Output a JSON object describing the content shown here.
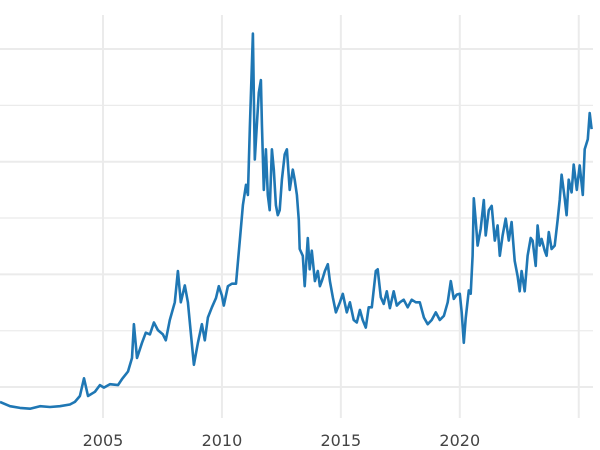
{
  "chart_data": {
    "type": "line",
    "title": "",
    "xlabel": "",
    "ylabel": "",
    "xlim": [
      2000.67,
      2025.6
    ],
    "ylim": [
      3.0,
      50.7
    ],
    "x_ticks": [
      2005,
      2010,
      2015,
      2020,
      2025
    ],
    "x_tick_labels": [
      "2005",
      "2010",
      "2015",
      "2020",
      ""
    ],
    "y_gridlines": [
      6.67,
      13.33,
      20,
      26.67,
      33.33,
      40,
      46.67
    ],
    "grid": true,
    "legend": "none",
    "line_color": "#1f77b4",
    "grid_color": "#ebebeb",
    "series": [
      {
        "points": [
          [
            2000.67,
            4.9
          ],
          [
            2001.09,
            4.4
          ],
          [
            2001.51,
            4.2
          ],
          [
            2001.93,
            4.1
          ],
          [
            2002.35,
            4.4
          ],
          [
            2002.77,
            4.3
          ],
          [
            2003.19,
            4.4
          ],
          [
            2003.61,
            4.6
          ],
          [
            2003.82,
            4.9
          ],
          [
            2004.03,
            5.6
          ],
          [
            2004.2,
            7.7
          ],
          [
            2004.37,
            5.6
          ],
          [
            2004.66,
            6.1
          ],
          [
            2004.87,
            6.9
          ],
          [
            2005.04,
            6.6
          ],
          [
            2005.29,
            7.0
          ],
          [
            2005.63,
            6.9
          ],
          [
            2005.8,
            7.6
          ],
          [
            2006.05,
            8.5
          ],
          [
            2006.22,
            10.1
          ],
          [
            2006.3,
            14.1
          ],
          [
            2006.43,
            10.1
          ],
          [
            2006.64,
            11.9
          ],
          [
            2006.8,
            13.1
          ],
          [
            2006.97,
            12.9
          ],
          [
            2007.14,
            14.3
          ],
          [
            2007.31,
            13.4
          ],
          [
            2007.52,
            12.9
          ],
          [
            2007.64,
            12.2
          ],
          [
            2007.81,
            14.6
          ],
          [
            2008.02,
            16.7
          ],
          [
            2008.15,
            20.4
          ],
          [
            2008.27,
            16.7
          ],
          [
            2008.44,
            18.7
          ],
          [
            2008.57,
            16.7
          ],
          [
            2008.69,
            13.1
          ],
          [
            2008.82,
            9.3
          ],
          [
            2008.99,
            11.9
          ],
          [
            2009.16,
            14.1
          ],
          [
            2009.28,
            12.2
          ],
          [
            2009.41,
            14.9
          ],
          [
            2009.58,
            16.1
          ],
          [
            2009.75,
            17.2
          ],
          [
            2009.87,
            18.6
          ],
          [
            2010.0,
            17.5
          ],
          [
            2010.08,
            16.3
          ],
          [
            2010.25,
            18.6
          ],
          [
            2010.42,
            18.9
          ],
          [
            2010.59,
            18.9
          ],
          [
            2010.75,
            24.0
          ],
          [
            2010.88,
            28.2
          ],
          [
            2011.01,
            30.6
          ],
          [
            2011.09,
            29.4
          ],
          [
            2011.17,
            37.2
          ],
          [
            2011.3,
            48.5
          ],
          [
            2011.38,
            33.6
          ],
          [
            2011.47,
            37.8
          ],
          [
            2011.55,
            41.5
          ],
          [
            2011.64,
            43.0
          ],
          [
            2011.68,
            37.8
          ],
          [
            2011.76,
            30.0
          ],
          [
            2011.85,
            34.8
          ],
          [
            2011.93,
            29.4
          ],
          [
            2012.01,
            27.6
          ],
          [
            2012.1,
            34.8
          ],
          [
            2012.18,
            32.4
          ],
          [
            2012.27,
            28.2
          ],
          [
            2012.35,
            27.0
          ],
          [
            2012.43,
            27.6
          ],
          [
            2012.52,
            31.2
          ],
          [
            2012.64,
            34.2
          ],
          [
            2012.73,
            34.8
          ],
          [
            2012.85,
            30.0
          ],
          [
            2012.98,
            32.4
          ],
          [
            2013.06,
            31.2
          ],
          [
            2013.15,
            29.4
          ],
          [
            2013.23,
            26.4
          ],
          [
            2013.27,
            23.0
          ],
          [
            2013.4,
            22.2
          ],
          [
            2013.48,
            18.6
          ],
          [
            2013.61,
            24.3
          ],
          [
            2013.69,
            20.6
          ],
          [
            2013.78,
            22.8
          ],
          [
            2013.91,
            19.2
          ],
          [
            2014.03,
            20.4
          ],
          [
            2014.12,
            18.6
          ],
          [
            2014.2,
            19.2
          ],
          [
            2014.33,
            20.4
          ],
          [
            2014.45,
            21.2
          ],
          [
            2014.54,
            19.2
          ],
          [
            2014.66,
            17.3
          ],
          [
            2014.79,
            15.5
          ],
          [
            2014.96,
            16.7
          ],
          [
            2015.08,
            17.7
          ],
          [
            2015.25,
            15.5
          ],
          [
            2015.38,
            16.7
          ],
          [
            2015.54,
            14.6
          ],
          [
            2015.67,
            14.3
          ],
          [
            2015.8,
            15.8
          ],
          [
            2015.92,
            14.6
          ],
          [
            2016.05,
            13.7
          ],
          [
            2016.17,
            16.1
          ],
          [
            2016.3,
            16.1
          ],
          [
            2016.47,
            20.4
          ],
          [
            2016.55,
            20.6
          ],
          [
            2016.68,
            17.3
          ],
          [
            2016.8,
            16.5
          ],
          [
            2016.93,
            18.0
          ],
          [
            2017.06,
            16.0
          ],
          [
            2017.22,
            18.0
          ],
          [
            2017.35,
            16.3
          ],
          [
            2017.48,
            16.7
          ],
          [
            2017.64,
            17.0
          ],
          [
            2017.81,
            16.1
          ],
          [
            2017.98,
            17.0
          ],
          [
            2018.15,
            16.7
          ],
          [
            2018.32,
            16.7
          ],
          [
            2018.49,
            14.9
          ],
          [
            2018.65,
            14.1
          ],
          [
            2018.82,
            14.6
          ],
          [
            2018.99,
            15.5
          ],
          [
            2019.16,
            14.6
          ],
          [
            2019.33,
            15.1
          ],
          [
            2019.49,
            16.7
          ],
          [
            2019.62,
            19.2
          ],
          [
            2019.75,
            17.1
          ],
          [
            2019.87,
            17.6
          ],
          [
            2020.0,
            17.7
          ],
          [
            2020.08,
            15.5
          ],
          [
            2020.17,
            11.9
          ],
          [
            2020.25,
            14.8
          ],
          [
            2020.38,
            18.1
          ],
          [
            2020.46,
            17.7
          ],
          [
            2020.54,
            22.2
          ],
          [
            2020.59,
            29.0
          ],
          [
            2020.67,
            26.4
          ],
          [
            2020.75,
            23.4
          ],
          [
            2020.88,
            25.4
          ],
          [
            2021.01,
            28.8
          ],
          [
            2021.09,
            24.6
          ],
          [
            2021.22,
            27.6
          ],
          [
            2021.34,
            28.1
          ],
          [
            2021.47,
            24.0
          ],
          [
            2021.59,
            25.8
          ],
          [
            2021.68,
            22.2
          ],
          [
            2021.8,
            24.6
          ],
          [
            2021.93,
            26.6
          ],
          [
            2022.06,
            24.0
          ],
          [
            2022.18,
            26.2
          ],
          [
            2022.31,
            21.6
          ],
          [
            2022.43,
            19.8
          ],
          [
            2022.52,
            18.0
          ],
          [
            2022.6,
            20.4
          ],
          [
            2022.73,
            18.0
          ],
          [
            2022.85,
            22.2
          ],
          [
            2022.98,
            24.3
          ],
          [
            2023.06,
            24.0
          ],
          [
            2023.19,
            21.0
          ],
          [
            2023.27,
            25.8
          ],
          [
            2023.36,
            23.4
          ],
          [
            2023.44,
            24.2
          ],
          [
            2023.57,
            22.8
          ],
          [
            2023.65,
            22.2
          ],
          [
            2023.74,
            25.0
          ],
          [
            2023.86,
            23.0
          ],
          [
            2023.99,
            23.4
          ],
          [
            2024.11,
            26.4
          ],
          [
            2024.2,
            28.8
          ],
          [
            2024.28,
            31.8
          ],
          [
            2024.41,
            29.0
          ],
          [
            2024.49,
            27.0
          ],
          [
            2024.58,
            31.2
          ],
          [
            2024.7,
            29.7
          ],
          [
            2024.79,
            33.0
          ],
          [
            2024.92,
            30.0
          ],
          [
            2025.04,
            32.9
          ],
          [
            2025.17,
            29.4
          ],
          [
            2025.25,
            34.8
          ],
          [
            2025.38,
            36.0
          ],
          [
            2025.46,
            39.1
          ],
          [
            2025.54,
            37.2
          ]
        ]
      }
    ]
  }
}
